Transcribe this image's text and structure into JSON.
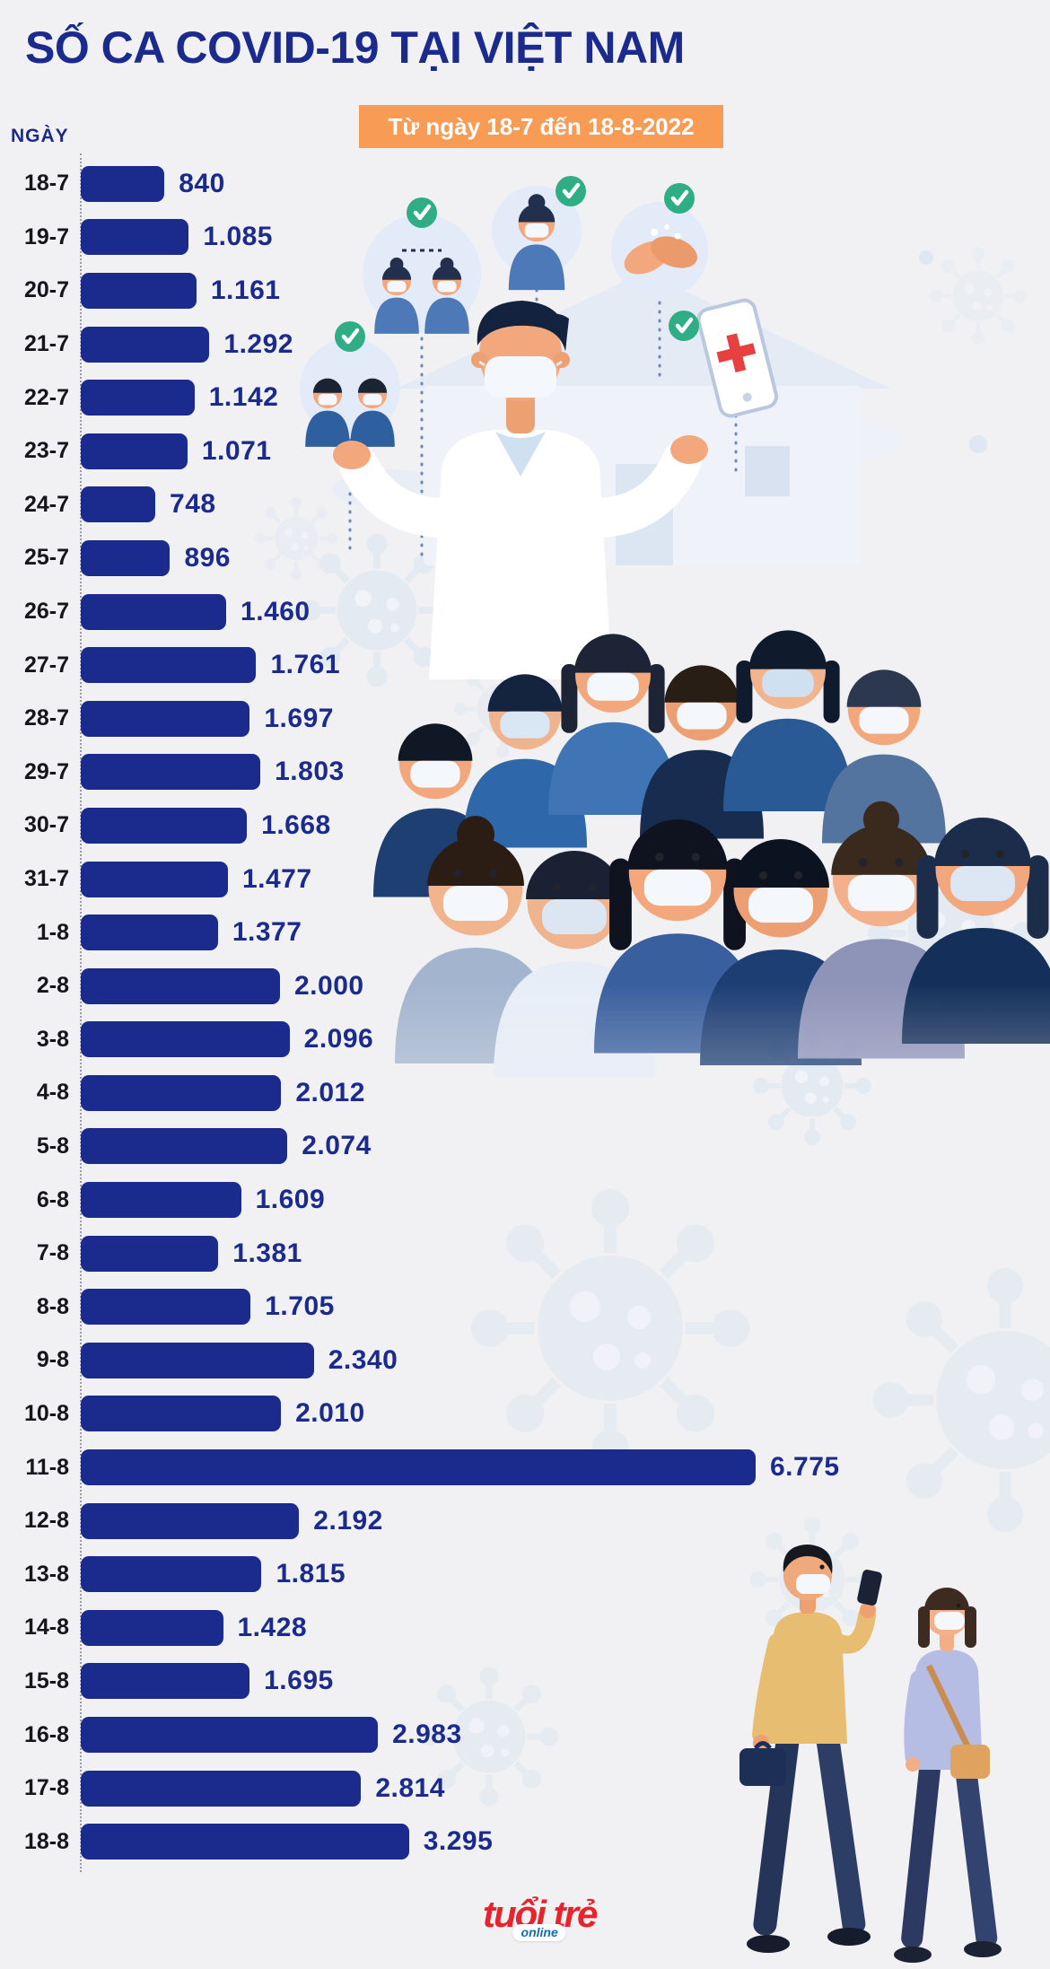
{
  "title": "SỐ CA COVID-19 TẠI VIỆT NAM",
  "subtitle": "Từ ngày 18-7 đến 18-8-2022",
  "axis_label": "NGÀY",
  "logo": {
    "main": "tuổi trẻ",
    "online": "online"
  },
  "colors": {
    "bar": "#1b2b8d",
    "title": "#1b2b8d",
    "subtitle_bg": "#f89b55",
    "subtitle_text": "#ffffff",
    "date_label": "#15151c",
    "background": "#f1f1f3",
    "check_green": "#2fae85",
    "logo_red": "#e8232e",
    "logo_blue": "#0e6cb8"
  },
  "chart_data": {
    "type": "bar",
    "orientation": "horizontal",
    "title": "SỐ CA COVID-19 TẠI VIỆT NAM",
    "period": "Từ ngày 18-7 đến 18-8-2022",
    "ylabel": "NGÀY",
    "categories": [
      "18-7",
      "19-7",
      "20-7",
      "21-7",
      "22-7",
      "23-7",
      "24-7",
      "25-7",
      "26-7",
      "27-7",
      "28-7",
      "29-7",
      "30-7",
      "31-7",
      "1-8",
      "2-8",
      "3-8",
      "4-8",
      "5-8",
      "6-8",
      "7-8",
      "8-8",
      "9-8",
      "10-8",
      "11-8",
      "12-8",
      "13-8",
      "14-8",
      "15-8",
      "16-8",
      "17-8",
      "18-8"
    ],
    "values": [
      840,
      1085,
      1161,
      1292,
      1142,
      1071,
      748,
      896,
      1460,
      1761,
      1697,
      1803,
      1668,
      1477,
      1377,
      2000,
      2096,
      2012,
      2074,
      1609,
      1381,
      1705,
      2340,
      2010,
      6775,
      2192,
      1815,
      1428,
      1695,
      2983,
      2814,
      3295
    ],
    "value_labels": [
      "840",
      "1.085",
      "1.161",
      "1.292",
      "1.142",
      "1.071",
      "748",
      "896",
      "1.460",
      "1.761",
      "1.697",
      "1.803",
      "1.668",
      "1.477",
      "1.377",
      "2.000",
      "2.096",
      "2.012",
      "2.074",
      "1.609",
      "1.381",
      "1.705",
      "2.340",
      "2.010",
      "6.775",
      "2.192",
      "1.815",
      "1.428",
      "1.695",
      "2.983",
      "2.814",
      "3.295"
    ],
    "xlim": [
      0,
      6775
    ],
    "grid": false,
    "legend": false
  }
}
